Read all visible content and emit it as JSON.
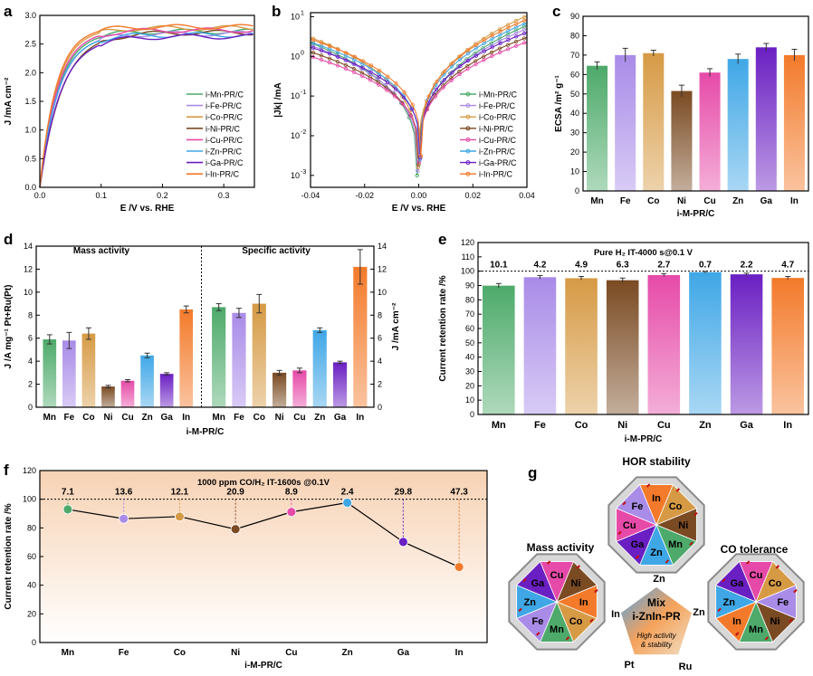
{
  "panel_letters": [
    "a",
    "b",
    "c",
    "d",
    "e",
    "f",
    "g"
  ],
  "colors": {
    "Mn": "#4daa6a",
    "Fe": "#a98be8",
    "Co": "#d69a45",
    "Ni": "#7a4a22",
    "Cu": "#e64aa8",
    "Zn": "#3fa7e6",
    "Ga": "#6a1fc2",
    "In": "#f37a2a"
  },
  "chart_data": [
    {
      "id": "a",
      "type": "line",
      "xlabel": "E /V vs. RHE",
      "ylabel": "J /mA cm⁻²",
      "xlim": [
        0,
        0.35
      ],
      "ylim": [
        0,
        3.0
      ],
      "xticks": [
        "0.0",
        "0.1",
        "0.2",
        "0.3"
      ],
      "yticks": [
        "0.0",
        "0.5",
        "1.0",
        "1.5",
        "2.0",
        "2.5",
        "3.0"
      ],
      "legend_position": "bottom-right",
      "series": [
        {
          "name": "i-Mn-PR/C",
          "key": "Mn",
          "plateau": 2.72,
          "k": 0.03
        },
        {
          "name": "i-Fe-PR/C",
          "key": "Fe",
          "plateau": 2.68,
          "k": 0.031
        },
        {
          "name": "i-Co-PR/C",
          "key": "Co",
          "plateau": 2.78,
          "k": 0.028
        },
        {
          "name": "i-Ni-PR/C",
          "key": "Ni",
          "plateau": 2.7,
          "k": 0.036
        },
        {
          "name": "i-Cu-PR/C",
          "key": "Cu",
          "plateau": 2.74,
          "k": 0.029
        },
        {
          "name": "i-Zn-PR/C",
          "key": "Zn",
          "plateau": 2.66,
          "k": 0.03
        },
        {
          "name": "i-Ga-PR/C",
          "key": "Ga",
          "plateau": 2.63,
          "k": 0.034
        },
        {
          "name": "i-In-PR/C",
          "key": "In",
          "plateau": 2.8,
          "k": 0.027
        }
      ]
    },
    {
      "id": "b",
      "type": "line",
      "log_y": true,
      "xlabel": "E /V vs. RHE",
      "ylabel": "|Jk| /mA",
      "xlim": [
        -0.04,
        0.04
      ],
      "ylim_exp": [
        -3.3,
        1.1
      ],
      "xticks": [
        "-0.04",
        "-0.02",
        "0.00",
        "0.02",
        "0.04"
      ],
      "yticks_exp": [
        -3,
        -2,
        -1,
        0,
        1
      ],
      "legend_position": "bottom-right",
      "series": [
        {
          "name": "i-Mn-PR/C",
          "key": "Mn",
          "j_neg": 2.2,
          "j_pos": 6.0
        },
        {
          "name": "i-Fe-PR/C",
          "key": "Fe",
          "j_neg": 1.9,
          "j_pos": 5.0
        },
        {
          "name": "i-Co-PR/C",
          "key": "Co",
          "j_neg": 3.0,
          "j_pos": 10.5
        },
        {
          "name": "i-Ni-PR/C",
          "key": "Ni",
          "j_neg": 1.3,
          "j_pos": 3.0
        },
        {
          "name": "i-Cu-PR/C",
          "key": "Cu",
          "j_neg": 1.0,
          "j_pos": 2.3
        },
        {
          "name": "i-Zn-PR/C",
          "key": "Zn",
          "j_neg": 2.3,
          "j_pos": 7.0
        },
        {
          "name": "i-Ga-PR/C",
          "key": "Ga",
          "j_neg": 1.7,
          "j_pos": 4.0
        },
        {
          "name": "i-In-PR/C",
          "key": "In",
          "j_neg": 2.7,
          "j_pos": 8.5
        }
      ]
    },
    {
      "id": "c",
      "type": "bar",
      "xlabel": "i-M-PR/C",
      "ylabel": "ECSA /m² g⁻¹",
      "ylim": [
        0,
        90
      ],
      "yticks": [
        "0",
        "10",
        "20",
        "30",
        "40",
        "50",
        "60",
        "70",
        "80",
        "90"
      ],
      "categories": [
        "Mn",
        "Fe",
        "Co",
        "Ni",
        "Cu",
        "Zn",
        "Ga",
        "In"
      ],
      "values": [
        64.5,
        70,
        71,
        51.5,
        61,
        68,
        74,
        70
      ],
      "errors": [
        2,
        3.5,
        1.5,
        3,
        2,
        2.5,
        2,
        3
      ]
    },
    {
      "id": "d",
      "type": "bar",
      "xlabel": "i-M-PR/C",
      "ylabel": "J /A mg⁻¹ Pt+Ru(Pt)",
      "ylabel_right": "J /mA cm⁻²",
      "ylim": [
        0,
        14
      ],
      "yticks": [
        "0",
        "2",
        "4",
        "6",
        "8",
        "10",
        "12",
        "14"
      ],
      "group_titles": [
        "Mass activity",
        "Specific activity"
      ],
      "categories": [
        "Mn",
        "Fe",
        "Co",
        "Ni",
        "Cu",
        "Zn",
        "Ga",
        "In"
      ],
      "mass_activity": [
        5.9,
        5.8,
        6.4,
        1.8,
        2.3,
        4.5,
        2.9,
        8.5
      ],
      "mass_errors": [
        0.4,
        0.7,
        0.5,
        0.1,
        0.1,
        0.2,
        0.1,
        0.3
      ],
      "specific_activity": [
        8.7,
        8.2,
        9.0,
        3.0,
        3.2,
        6.7,
        3.9,
        12.2
      ],
      "specific_errors": [
        0.3,
        0.4,
        0.8,
        0.2,
        0.2,
        0.2,
        0.1,
        1.5
      ]
    },
    {
      "id": "e",
      "type": "bar",
      "title": "Pure H₂   IT-4000 s@0.1 V",
      "xlabel": "i-M-PR/C",
      "ylabel": "Current retention rate /%",
      "ylim": [
        0,
        120
      ],
      "yticks": [
        "0",
        "10",
        "20",
        "30",
        "40",
        "50",
        "60",
        "70",
        "80",
        "90",
        "100",
        "110",
        "120"
      ],
      "reference_line": 100,
      "categories": [
        "Mn",
        "Fe",
        "Co",
        "Ni",
        "Cu",
        "Zn",
        "Ga",
        "In"
      ],
      "values": [
        89.9,
        95.8,
        95.1,
        93.7,
        97.3,
        99.3,
        97.8,
        95.3
      ],
      "errors": [
        1.5,
        1.2,
        1.2,
        1.5,
        1.0,
        0.6,
        0.8,
        1.0
      ],
      "labels": [
        "10.1",
        "4.2",
        "4.9",
        "6.3",
        "2.7",
        "0.7",
        "2.2",
        "4.7"
      ]
    },
    {
      "id": "f",
      "type": "line",
      "title": "1000 ppm CO/H₂ IT-1600s @0.1V",
      "xlabel": "i-M-PR/C",
      "ylabel": "Current retention rate /%",
      "ylim": [
        0,
        120
      ],
      "yticks": [
        "0",
        "20",
        "40",
        "60",
        "80",
        "100",
        "120"
      ],
      "reference_line": 100,
      "categories": [
        "Mn",
        "Fe",
        "Co",
        "Ni",
        "Cu",
        "Zn",
        "Ga",
        "In"
      ],
      "values": [
        92.9,
        86.4,
        87.9,
        79.1,
        91.1,
        97.6,
        70.2,
        52.7
      ],
      "labels": [
        "7.1",
        "13.6",
        "12.1",
        "20.9",
        "8.9",
        "2.4",
        "29.8",
        "47.3"
      ]
    }
  ],
  "diagram_g": {
    "top_title": "HOR stability",
    "left_title": "Mass activity",
    "right_title": "CO tolerance",
    "top_wheel": [
      "In",
      "Co",
      "Ni",
      "Mn",
      "Zn",
      "Ga",
      "Cu",
      "Fe"
    ],
    "left_wheel": [
      "Cu",
      "Ni",
      "In",
      "Co",
      "Mn",
      "Fe",
      "Zn",
      "Ga"
    ],
    "right_wheel": [
      "Cu",
      "Co",
      "Fe",
      "Ni",
      "Mn",
      "In",
      "Zn",
      "Ga"
    ],
    "center_title": "Mix",
    "center_subtitle": "i-ZnIn-PR",
    "center_note": "High activity & stability",
    "pentagon_labels": [
      "Zn",
      "Zn",
      "Ru",
      "Pt",
      "In"
    ]
  }
}
